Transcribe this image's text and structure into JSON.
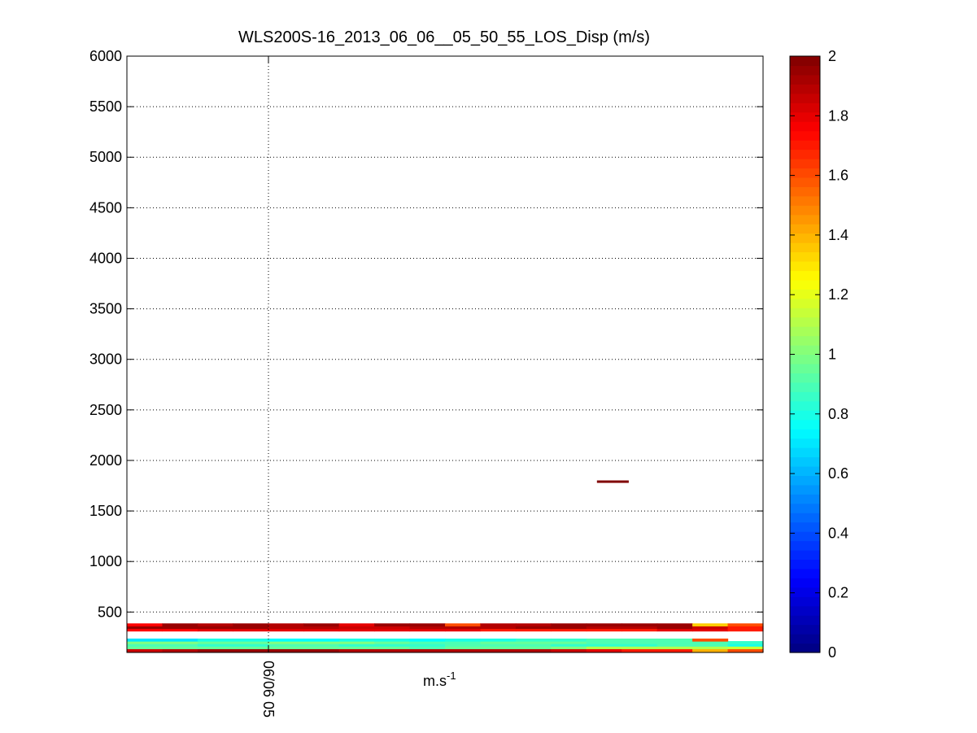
{
  "chart_data": {
    "type": "heatmap",
    "title": "WLS200S-16_2013_06_06__05_50_55_LOS_Disp (m/s)",
    "xlabel": "m.s",
    "xlabel_superscript": "-1",
    "ylabel": "",
    "ylim": [
      100,
      6000
    ],
    "yticks": [
      500,
      1000,
      1500,
      2000,
      2500,
      3000,
      3500,
      4000,
      4500,
      5000,
      5500,
      6000
    ],
    "xtick_labels": [
      "06/06 05"
    ],
    "grid": true,
    "colorbar": {
      "colormap": "jet",
      "range": [
        0,
        2
      ],
      "ticks": [
        0,
        0.2,
        0.4,
        0.6,
        0.8,
        1,
        1.2,
        1.4,
        1.6,
        1.8,
        2
      ],
      "placement": "right"
    },
    "columns": 18,
    "rows": [
      {
        "altitude": 125,
        "values": [
          1.85,
          1.9,
          1.95,
          1.95,
          1.95,
          1.95,
          1.9,
          1.9,
          1.9,
          1.9,
          1.9,
          1.9,
          1.85,
          1.8,
          1.7,
          1.7,
          1.4,
          1.6
        ]
      },
      {
        "altitude": 150,
        "values": [
          0.95,
          0.95,
          0.95,
          0.95,
          0.95,
          0.95,
          0.95,
          0.95,
          0.9,
          0.95,
          0.95,
          0.95,
          1.0,
          1.1,
          1.1,
          1.1,
          1.1,
          1.15
        ]
      },
      {
        "altitude": 175,
        "values": [
          0.9,
          0.9,
          0.85,
          0.85,
          0.9,
          0.9,
          0.85,
          0.85,
          0.85,
          0.9,
          0.9,
          0.9,
          0.85,
          0.85,
          0.85,
          0.9,
          0.9,
          0.8
        ]
      },
      {
        "altitude": 200,
        "values": [
          1.0,
          1.0,
          0.95,
          0.95,
          1.0,
          1.0,
          1.0,
          0.95,
          0.9,
          0.9,
          0.95,
          0.95,
          0.95,
          0.9,
          0.9,
          0.9,
          0.9,
          0.85
        ]
      },
      {
        "altitude": 225,
        "values": [
          0.7,
          0.7,
          0.8,
          0.8,
          0.75,
          0.75,
          0.8,
          0.8,
          0.75,
          0.8,
          0.8,
          0.85,
          0.85,
          0.9,
          0.9,
          0.9,
          1.6,
          null
        ]
      },
      {
        "altitude": 325,
        "values": [
          1.75,
          1.75,
          1.8,
          1.8,
          1.8,
          1.8,
          1.8,
          1.8,
          1.8,
          1.8,
          1.7,
          1.7,
          1.7,
          1.7,
          1.7,
          1.8,
          1.8,
          1.7
        ]
      },
      {
        "altitude": 350,
        "values": [
          1.95,
          1.95,
          1.95,
          1.95,
          1.9,
          1.9,
          1.85,
          1.85,
          1.9,
          1.9,
          1.9,
          1.95,
          1.95,
          1.9,
          1.9,
          1.95,
          1.85,
          1.7
        ]
      },
      {
        "altitude": 375,
        "values": [
          1.75,
          1.95,
          1.9,
          1.95,
          1.9,
          1.95,
          1.8,
          1.95,
          1.95,
          1.6,
          1.9,
          1.9,
          1.95,
          1.95,
          1.95,
          1.95,
          1.35,
          1.6
        ]
      }
    ],
    "segments": [
      {
        "altitude": 1790,
        "column_start": 13.3,
        "column_end": 14.2,
        "value": 2.0
      }
    ]
  }
}
